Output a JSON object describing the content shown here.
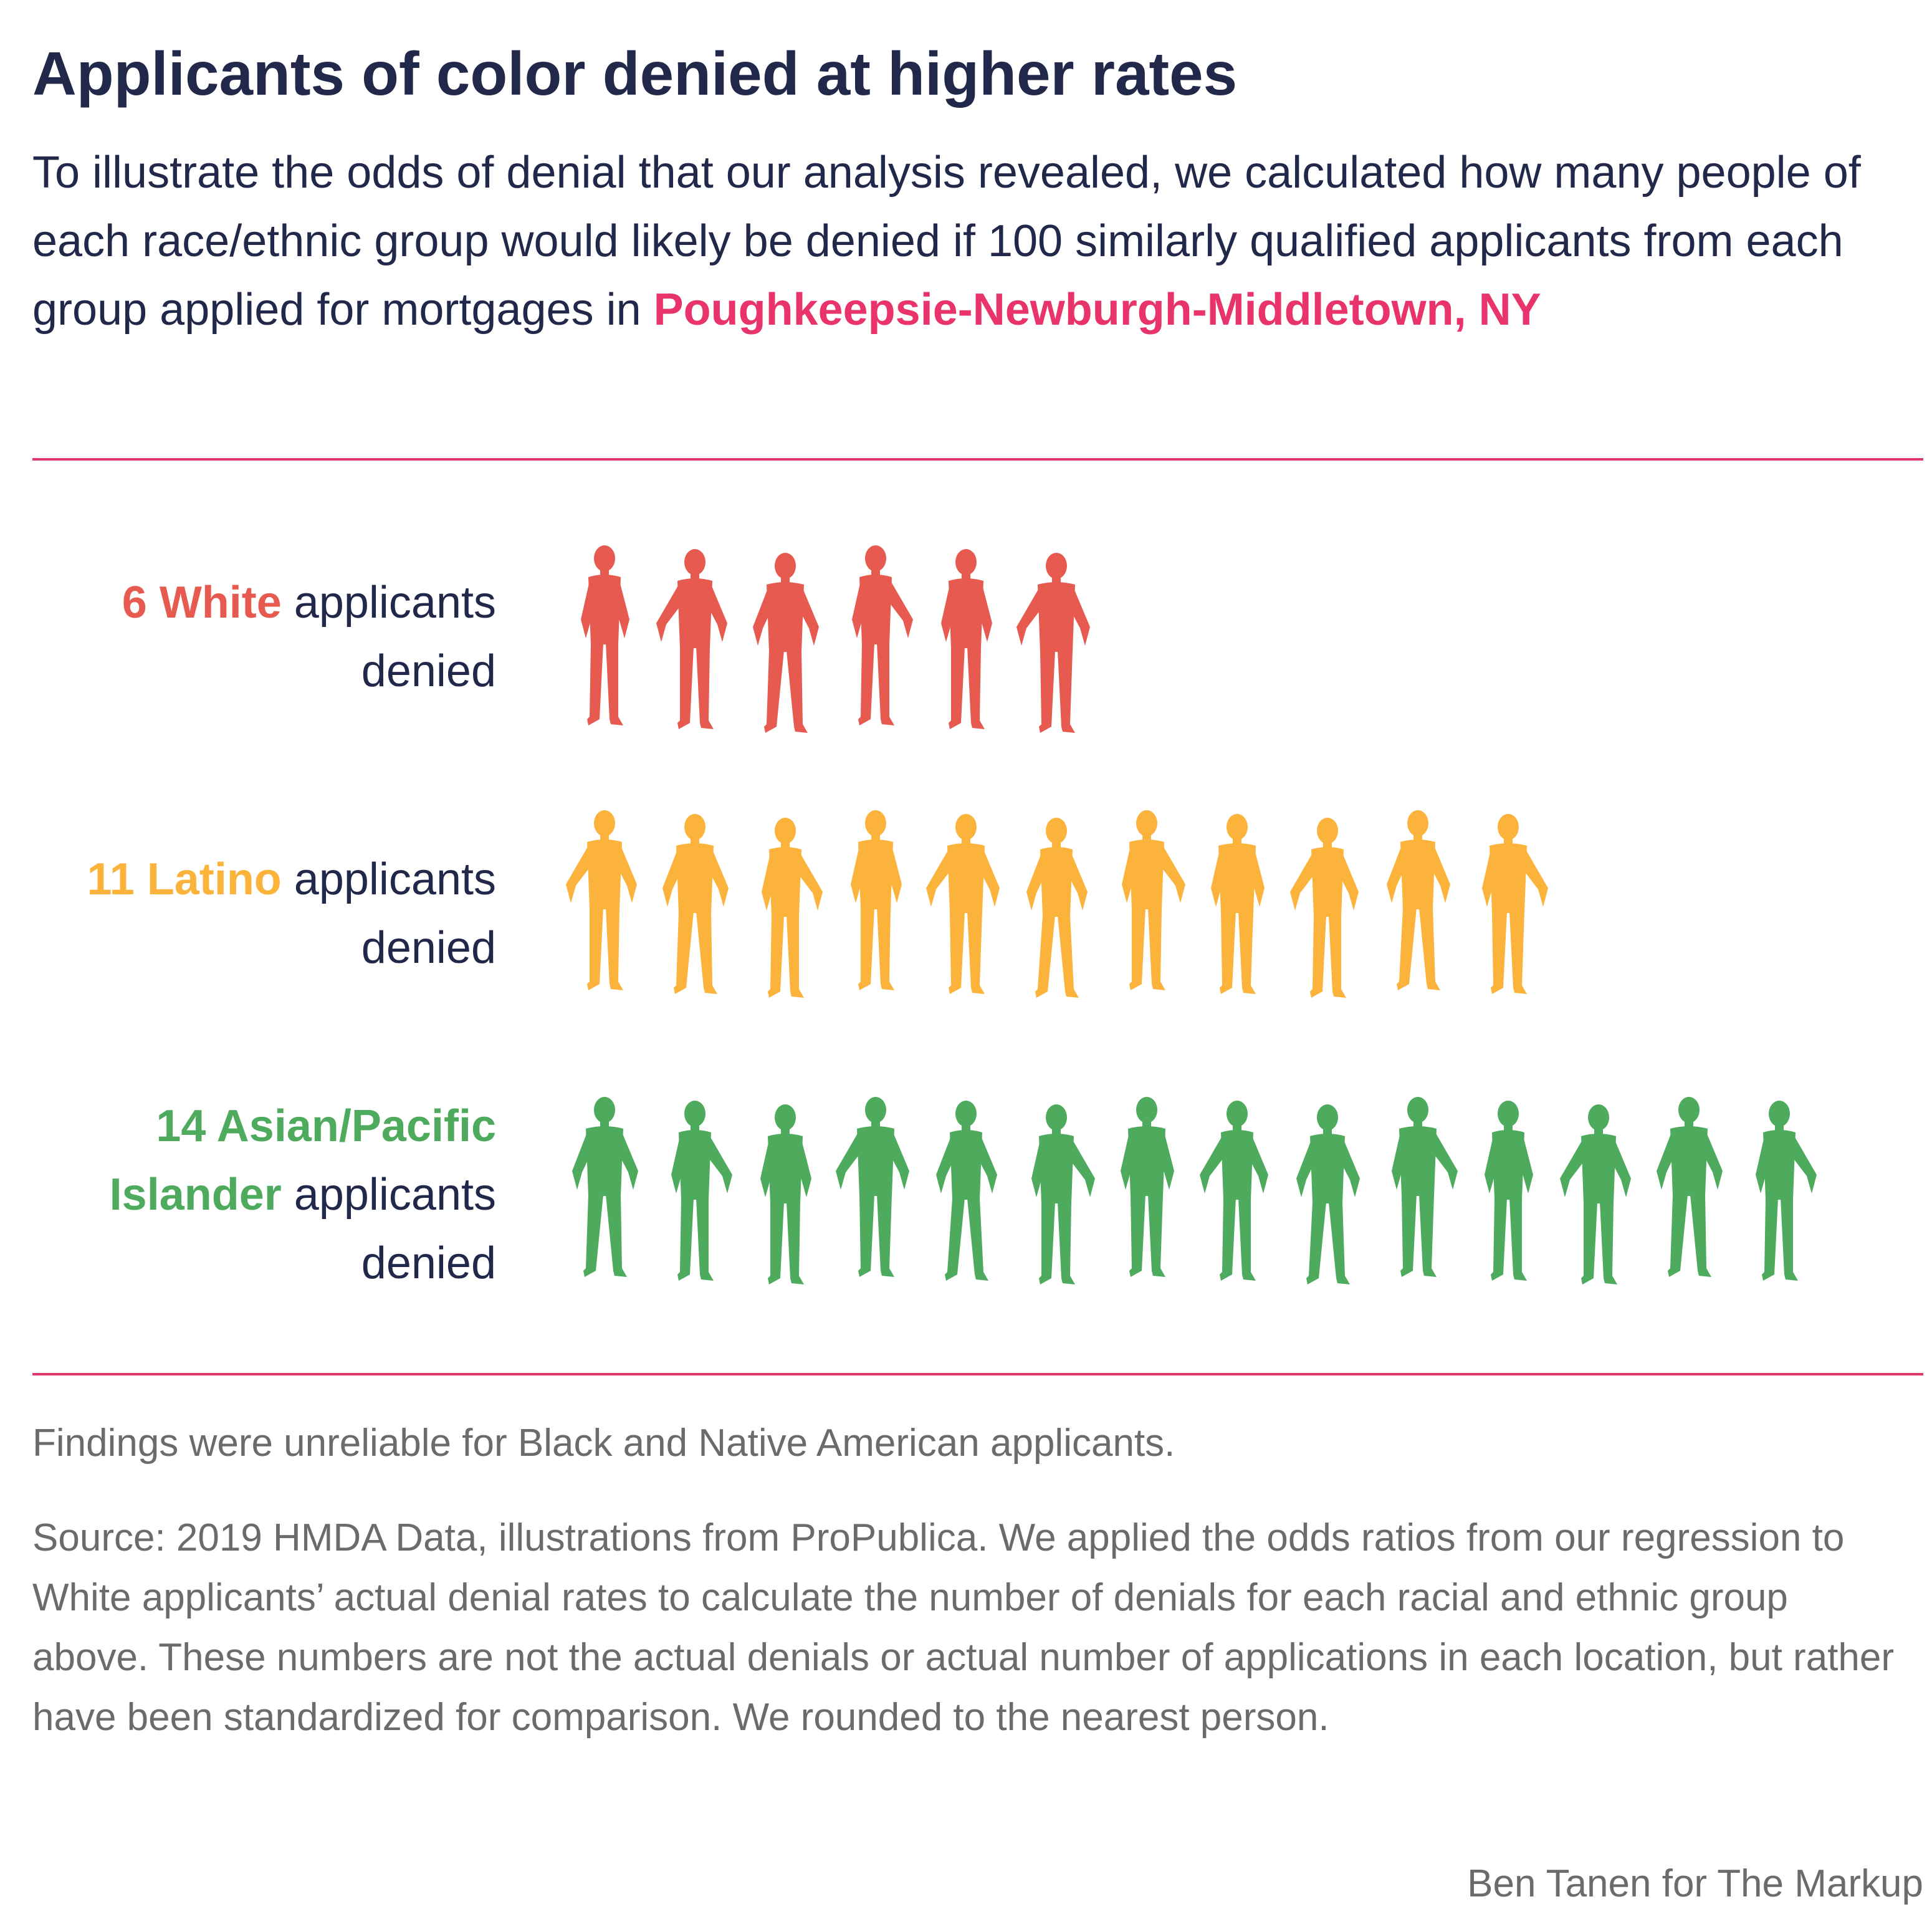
{
  "title": "Applicants of color denied at higher rates",
  "subtitle": {
    "text": "To illustrate the odds of denial that our analysis revealed, we calculated how many people of each race/ethnic group would likely be denied if 100 similarly qualified applicants from each group applied for mortgages in ",
    "location": "Poughkeepsie-Newburgh-Middletown, NY"
  },
  "colors": {
    "white": "#e75a50",
    "latino": "#fbb33c",
    "asian": "#4eaa5d",
    "accent": "#e8336b",
    "text": "#22284a",
    "muted": "#6b6b6b"
  },
  "chart_data": {
    "type": "pictograph",
    "unit": "applicants denied per 100 similarly qualified applicants",
    "series": [
      {
        "count_label": "6",
        "group": "White",
        "suffix_line1": " applicants",
        "suffix_line2": "denied",
        "value": 6,
        "color": "#e75a50"
      },
      {
        "count_label": "11",
        "group": "Latino",
        "suffix_line1": " applicants",
        "suffix_line2": "denied",
        "value": 11,
        "color": "#fbb33c"
      },
      {
        "count_label": "14",
        "group_line1": "Asian/Pacific",
        "group_line2": "Islander",
        "suffix_line2": " applicants",
        "suffix_line3": "denied",
        "value": 14,
        "color": "#4eaa5d"
      }
    ]
  },
  "footnote": "Findings were unreliable for Black and Native American applicants.",
  "source": "Source: 2019 HMDA Data, illustrations from ProPublica. We applied the odds ratios from our regression to White applicants’ actual denial rates to calculate the number of denials for each racial and ethnic group above. These numbers are not the actual denials or actual number of applications in each location, but rather have been standardized for comparison. We rounded to the nearest person.",
  "credit": "Ben Tanen for The Markup"
}
